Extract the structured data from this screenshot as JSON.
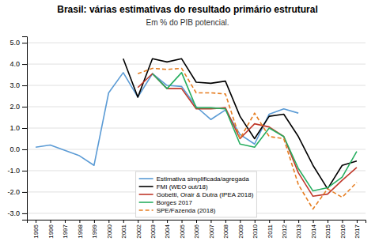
{
  "chart_data": {
    "type": "line",
    "title": "Brasil: várias estimativas do resultado primário estrutural",
    "subtitle": "Em % do PIB potencial.",
    "x": [
      1995,
      1996,
      1997,
      1998,
      1999,
      2000,
      2001,
      2002,
      2003,
      2004,
      2005,
      2006,
      2007,
      2008,
      2009,
      2010,
      2011,
      2012,
      2013,
      2014,
      2015,
      2016,
      2017
    ],
    "xlim": [
      1994.4,
      2017.6
    ],
    "xticks": [
      1995,
      1996,
      1997,
      1998,
      1999,
      2000,
      2001,
      2002,
      2003,
      2004,
      2005,
      2006,
      2007,
      2008,
      2009,
      2010,
      2011,
      2012,
      2013,
      2014,
      2015,
      2016,
      2017
    ],
    "ylim": [
      -3.3,
      5.3
    ],
    "yticks": [
      {
        "value": -3.0,
        "label": "-3.0"
      },
      {
        "value": -2.0,
        "label": "-2.0"
      },
      {
        "value": -1.0,
        "label": "-1.0"
      },
      {
        "value": 0.0,
        "label": "0.0"
      },
      {
        "value": 1.0,
        "label": "1.0"
      },
      {
        "value": 2.0,
        "label": "2.0"
      },
      {
        "value": 3.0,
        "label": "3.0"
      },
      {
        "value": 4.0,
        "label": "4.0"
      },
      {
        "value": 5.0,
        "label": "5.0"
      }
    ],
    "grid": true,
    "legend": "bottom",
    "series": [
      {
        "name": "Estimativa simplificada/agregada",
        "color": "#5b9bd5",
        "line_style": "solid",
        "values": [
          0.1,
          0.2,
          -0.05,
          -0.3,
          -0.75,
          2.65,
          3.6,
          2.45,
          3.55,
          3.0,
          2.95,
          2.0,
          1.4,
          1.85,
          0.7,
          0.25,
          1.65,
          1.9,
          1.7,
          null,
          null,
          null,
          null
        ]
      },
      {
        "name": "FMI (WEO out/18)",
        "color": "#000000",
        "line_style": "solid",
        "values": [
          null,
          null,
          null,
          null,
          null,
          null,
          4.25,
          2.45,
          4.25,
          4.1,
          4.25,
          3.15,
          3.1,
          3.2,
          1.55,
          0.5,
          1.55,
          1.65,
          0.6,
          -0.75,
          -1.85,
          -0.75,
          -0.55
        ]
      },
      {
        "name": "Gobetti, Orair & Dutra (IPEA 2018)",
        "color": "#c0392b",
        "line_style": "solid",
        "values": [
          null,
          null,
          null,
          null,
          null,
          null,
          null,
          2.9,
          3.55,
          2.85,
          2.85,
          1.9,
          1.9,
          1.95,
          0.5,
          1.2,
          1.05,
          0.6,
          -1.1,
          -2.2,
          -2.1,
          -1.45,
          -0.85
        ]
      },
      {
        "name": "Borges 2017",
        "color": "#27ae60",
        "line_style": "solid",
        "values": [
          null,
          null,
          null,
          null,
          null,
          null,
          null,
          null,
          3.55,
          2.85,
          3.6,
          1.95,
          1.95,
          1.9,
          0.25,
          0.1,
          1.0,
          0.6,
          -0.9,
          -1.95,
          -1.8,
          -1.3,
          -0.1
        ]
      },
      {
        "name": "SPE/Fazenda (2018)",
        "color": "#e67e22",
        "line_style": "dashed",
        "values": [
          null,
          null,
          null,
          null,
          null,
          null,
          null,
          3.55,
          3.8,
          3.75,
          3.8,
          2.65,
          2.65,
          2.6,
          0.5,
          1.7,
          0.6,
          0.5,
          -1.65,
          -2.8,
          -1.85,
          -2.25,
          -1.55
        ]
      }
    ]
  }
}
